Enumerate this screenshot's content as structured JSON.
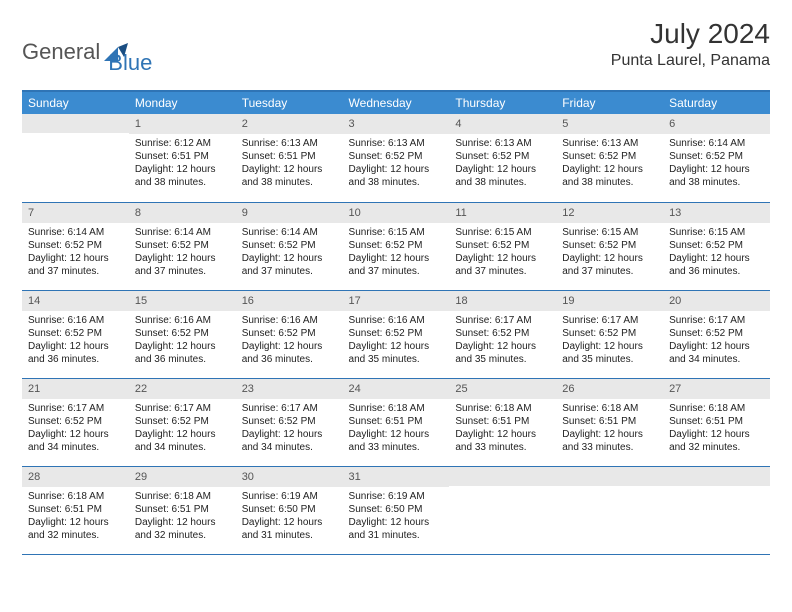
{
  "brand": {
    "main": "General",
    "sub": "Blue"
  },
  "title": "July 2024",
  "location": "Punta Laurel, Panama",
  "colors": {
    "header_bg": "#3b8bd0",
    "row_border": "#2f74b5",
    "daynum_bg": "#e8e8e8",
    "text": "#222222",
    "logo_gray": "#555555",
    "logo_blue": "#2f74b5"
  },
  "weekdays": [
    "Sunday",
    "Monday",
    "Tuesday",
    "Wednesday",
    "Thursday",
    "Friday",
    "Saturday"
  ],
  "layout": {
    "first_weekday_index": 1,
    "days_in_month": 31,
    "weeks": 5
  },
  "days": [
    {
      "n": 1,
      "sunrise": "6:12 AM",
      "sunset": "6:51 PM",
      "daylight": "12 hours and 38 minutes."
    },
    {
      "n": 2,
      "sunrise": "6:13 AM",
      "sunset": "6:51 PM",
      "daylight": "12 hours and 38 minutes."
    },
    {
      "n": 3,
      "sunrise": "6:13 AM",
      "sunset": "6:52 PM",
      "daylight": "12 hours and 38 minutes."
    },
    {
      "n": 4,
      "sunrise": "6:13 AM",
      "sunset": "6:52 PM",
      "daylight": "12 hours and 38 minutes."
    },
    {
      "n": 5,
      "sunrise": "6:13 AM",
      "sunset": "6:52 PM",
      "daylight": "12 hours and 38 minutes."
    },
    {
      "n": 6,
      "sunrise": "6:14 AM",
      "sunset": "6:52 PM",
      "daylight": "12 hours and 38 minutes."
    },
    {
      "n": 7,
      "sunrise": "6:14 AM",
      "sunset": "6:52 PM",
      "daylight": "12 hours and 37 minutes."
    },
    {
      "n": 8,
      "sunrise": "6:14 AM",
      "sunset": "6:52 PM",
      "daylight": "12 hours and 37 minutes."
    },
    {
      "n": 9,
      "sunrise": "6:14 AM",
      "sunset": "6:52 PM",
      "daylight": "12 hours and 37 minutes."
    },
    {
      "n": 10,
      "sunrise": "6:15 AM",
      "sunset": "6:52 PM",
      "daylight": "12 hours and 37 minutes."
    },
    {
      "n": 11,
      "sunrise": "6:15 AM",
      "sunset": "6:52 PM",
      "daylight": "12 hours and 37 minutes."
    },
    {
      "n": 12,
      "sunrise": "6:15 AM",
      "sunset": "6:52 PM",
      "daylight": "12 hours and 37 minutes."
    },
    {
      "n": 13,
      "sunrise": "6:15 AM",
      "sunset": "6:52 PM",
      "daylight": "12 hours and 36 minutes."
    },
    {
      "n": 14,
      "sunrise": "6:16 AM",
      "sunset": "6:52 PM",
      "daylight": "12 hours and 36 minutes."
    },
    {
      "n": 15,
      "sunrise": "6:16 AM",
      "sunset": "6:52 PM",
      "daylight": "12 hours and 36 minutes."
    },
    {
      "n": 16,
      "sunrise": "6:16 AM",
      "sunset": "6:52 PM",
      "daylight": "12 hours and 36 minutes."
    },
    {
      "n": 17,
      "sunrise": "6:16 AM",
      "sunset": "6:52 PM",
      "daylight": "12 hours and 35 minutes."
    },
    {
      "n": 18,
      "sunrise": "6:17 AM",
      "sunset": "6:52 PM",
      "daylight": "12 hours and 35 minutes."
    },
    {
      "n": 19,
      "sunrise": "6:17 AM",
      "sunset": "6:52 PM",
      "daylight": "12 hours and 35 minutes."
    },
    {
      "n": 20,
      "sunrise": "6:17 AM",
      "sunset": "6:52 PM",
      "daylight": "12 hours and 34 minutes."
    },
    {
      "n": 21,
      "sunrise": "6:17 AM",
      "sunset": "6:52 PM",
      "daylight": "12 hours and 34 minutes."
    },
    {
      "n": 22,
      "sunrise": "6:17 AM",
      "sunset": "6:52 PM",
      "daylight": "12 hours and 34 minutes."
    },
    {
      "n": 23,
      "sunrise": "6:17 AM",
      "sunset": "6:52 PM",
      "daylight": "12 hours and 34 minutes."
    },
    {
      "n": 24,
      "sunrise": "6:18 AM",
      "sunset": "6:51 PM",
      "daylight": "12 hours and 33 minutes."
    },
    {
      "n": 25,
      "sunrise": "6:18 AM",
      "sunset": "6:51 PM",
      "daylight": "12 hours and 33 minutes."
    },
    {
      "n": 26,
      "sunrise": "6:18 AM",
      "sunset": "6:51 PM",
      "daylight": "12 hours and 33 minutes."
    },
    {
      "n": 27,
      "sunrise": "6:18 AM",
      "sunset": "6:51 PM",
      "daylight": "12 hours and 32 minutes."
    },
    {
      "n": 28,
      "sunrise": "6:18 AM",
      "sunset": "6:51 PM",
      "daylight": "12 hours and 32 minutes."
    },
    {
      "n": 29,
      "sunrise": "6:18 AM",
      "sunset": "6:51 PM",
      "daylight": "12 hours and 32 minutes."
    },
    {
      "n": 30,
      "sunrise": "6:19 AM",
      "sunset": "6:50 PM",
      "daylight": "12 hours and 31 minutes."
    },
    {
      "n": 31,
      "sunrise": "6:19 AM",
      "sunset": "6:50 PM",
      "daylight": "12 hours and 31 minutes."
    }
  ],
  "labels": {
    "sunrise": "Sunrise:",
    "sunset": "Sunset:",
    "daylight": "Daylight:"
  }
}
